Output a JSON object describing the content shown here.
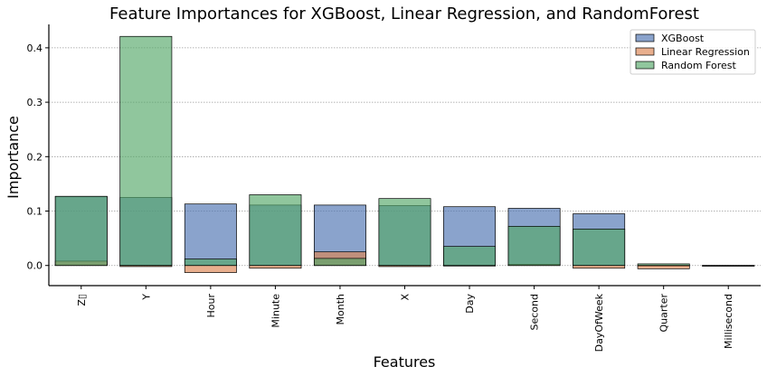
{
  "chart_data": {
    "type": "bar",
    "title": "Feature Importances for XGBoost, Linear Regression, and RandomForest",
    "xlabel": "Features",
    "ylabel": "Importance",
    "categories": [
      "Z▯",
      "Y",
      "Hour",
      "Minute",
      "Month",
      "X",
      "Day",
      "Second",
      "DayOfWeek",
      "Quarter",
      "Millisecond"
    ],
    "series": [
      {
        "name": "XGBoost",
        "color": "#4c72b0",
        "values": [
          0.127,
          0.125,
          0.113,
          0.111,
          0.111,
          0.11,
          0.108,
          0.105,
          0.095,
          0.0,
          0.0
        ]
      },
      {
        "name": "Linear Regression",
        "color": "#dd8452",
        "values": [
          0.008,
          -0.002,
          -0.013,
          -0.005,
          0.025,
          -0.002,
          0.0,
          0.002,
          -0.005,
          -0.006,
          0.0
        ]
      },
      {
        "name": "Random Forest",
        "color": "#55a868",
        "values": [
          0.127,
          0.421,
          0.012,
          0.13,
          0.013,
          0.123,
          0.035,
          0.072,
          0.067,
          0.003,
          0.0
        ]
      }
    ],
    "ylim": [
      -0.037,
      0.443
    ],
    "yticks": [
      "0.0",
      "0.1",
      "0.2",
      "0.3",
      "0.4"
    ],
    "ytick_values": [
      0.0,
      0.1,
      0.2,
      0.3,
      0.4
    ],
    "grid": "horizontal-dotted",
    "legend_position": "top-right"
  }
}
